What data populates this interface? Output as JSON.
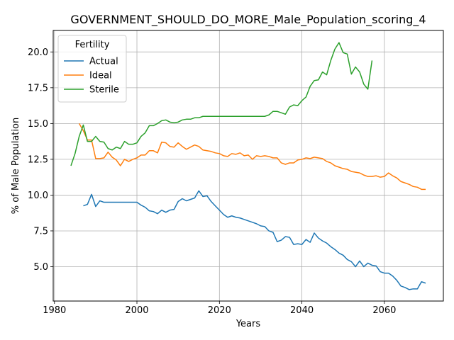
{
  "chart_data": {
    "type": "line",
    "title": "GOVERNMENT_SHOULD_DO_MORE_Male_Population_scoring_4",
    "xlabel": "Years",
    "ylabel": "% of Male Population",
    "xlim": [
      1979.7,
      2074.3
    ],
    "ylim": [
      2.6,
      21.5
    ],
    "xticks": [
      1980,
      2000,
      2020,
      2040,
      2060
    ],
    "yticks": [
      5.0,
      7.5,
      10.0,
      12.5,
      15.0,
      17.5,
      20.0
    ],
    "xtick_labels": [
      "1980",
      "2000",
      "2020",
      "2040",
      "2060"
    ],
    "ytick_labels": [
      "5.0",
      "7.5",
      "10.0",
      "12.5",
      "15.0",
      "17.5",
      "20.0"
    ],
    "grid": true,
    "legend": {
      "title": "Fertility",
      "position": "top-left"
    },
    "series": [
      {
        "name": "Actual",
        "color": "#1f77b4",
        "x": [
          1987,
          1988,
          1989,
          1990,
          1991,
          1992,
          1993,
          1994,
          1995,
          1996,
          1997,
          1998,
          1999,
          2000,
          2001,
          2002,
          2003,
          2004,
          2005,
          2006,
          2007,
          2008,
          2009,
          2010,
          2011,
          2012,
          2013,
          2014,
          2015,
          2016,
          2017,
          2018,
          2019,
          2020,
          2021,
          2022,
          2023,
          2024,
          2025,
          2026,
          2027,
          2028,
          2029,
          2030,
          2031,
          2032,
          2033,
          2034,
          2035,
          2036,
          2037,
          2038,
          2039,
          2040,
          2041,
          2042,
          2043,
          2044,
          2045,
          2046,
          2047,
          2048,
          2049,
          2050,
          2051,
          2052,
          2053,
          2054,
          2055,
          2056,
          2057,
          2058,
          2059,
          2060,
          2061,
          2062,
          2063,
          2064,
          2065,
          2066,
          2067,
          2068,
          2069,
          2070
        ],
        "y": [
          9.25,
          9.35,
          10.05,
          9.2,
          9.6,
          9.5,
          9.5,
          9.5,
          9.5,
          9.5,
          9.5,
          9.5,
          9.5,
          9.5,
          9.3,
          9.15,
          8.9,
          8.85,
          8.7,
          8.95,
          8.8,
          8.95,
          9.0,
          9.55,
          9.75,
          9.6,
          9.7,
          9.8,
          10.3,
          9.9,
          9.95,
          9.55,
          9.25,
          8.95,
          8.65,
          8.45,
          8.55,
          8.45,
          8.4,
          8.3,
          8.2,
          8.1,
          8.0,
          7.85,
          7.8,
          7.5,
          7.4,
          6.75,
          6.85,
          7.1,
          7.05,
          6.55,
          6.6,
          6.55,
          6.9,
          6.7,
          7.35,
          7.0,
          6.8,
          6.65,
          6.4,
          6.2,
          5.95,
          5.8,
          5.5,
          5.35,
          5.0,
          5.4,
          5.0,
          5.25,
          5.1,
          5.05,
          4.65,
          4.55,
          4.55,
          4.35,
          4.05,
          3.65,
          3.55,
          3.4,
          3.45,
          3.45,
          3.95,
          3.85
        ]
      },
      {
        "name": "Ideal",
        "color": "#ff7f0e",
        "x": [
          1986,
          1987,
          1988,
          1989,
          1990,
          1991,
          1992,
          1993,
          1994,
          1995,
          1996,
          1997,
          1998,
          1999,
          2000,
          2001,
          2002,
          2003,
          2004,
          2005,
          2006,
          2007,
          2008,
          2009,
          2010,
          2011,
          2012,
          2013,
          2014,
          2015,
          2016,
          2017,
          2018,
          2019,
          2020,
          2021,
          2022,
          2023,
          2024,
          2025,
          2026,
          2027,
          2028,
          2029,
          2030,
          2031,
          2032,
          2033,
          2034,
          2035,
          2036,
          2037,
          2038,
          2039,
          2040,
          2041,
          2042,
          2043,
          2044,
          2045,
          2046,
          2047,
          2048,
          2049,
          2050,
          2051,
          2052,
          2053,
          2054,
          2055,
          2056,
          2057,
          2058,
          2059,
          2060,
          2061,
          2062,
          2063,
          2064,
          2065,
          2066,
          2067,
          2068,
          2069,
          2070
        ],
        "y": [
          15.0,
          14.5,
          13.85,
          13.85,
          12.55,
          12.55,
          12.6,
          13.0,
          12.65,
          12.45,
          12.05,
          12.5,
          12.35,
          12.5,
          12.6,
          12.8,
          12.8,
          13.1,
          13.1,
          12.95,
          13.7,
          13.65,
          13.4,
          13.35,
          13.65,
          13.4,
          13.2,
          13.35,
          13.5,
          13.4,
          13.15,
          13.1,
          13.05,
          12.95,
          12.9,
          12.75,
          12.7,
          12.9,
          12.85,
          12.95,
          12.75,
          12.8,
          12.5,
          12.75,
          12.7,
          12.75,
          12.7,
          12.6,
          12.6,
          12.25,
          12.15,
          12.25,
          12.25,
          12.45,
          12.5,
          12.6,
          12.55,
          12.65,
          12.6,
          12.55,
          12.35,
          12.25,
          12.05,
          11.95,
          11.85,
          11.8,
          11.65,
          11.6,
          11.55,
          11.4,
          11.3,
          11.3,
          11.35,
          11.25,
          11.3,
          11.55,
          11.35,
          11.2,
          10.95,
          10.85,
          10.75,
          10.6,
          10.55,
          10.4,
          10.4
        ]
      },
      {
        "name": "Sterile",
        "color": "#2ca02c",
        "x": [
          1984,
          1985,
          1986,
          1987,
          1988,
          1989,
          1990,
          1991,
          1992,
          1993,
          1994,
          1995,
          1996,
          1997,
          1998,
          1999,
          2000,
          2001,
          2002,
          2003,
          2004,
          2005,
          2006,
          2007,
          2008,
          2009,
          2010,
          2011,
          2012,
          2013,
          2014,
          2015,
          2016,
          2017,
          2018,
          2019,
          2020,
          2021,
          2022,
          2023,
          2024,
          2025,
          2026,
          2027,
          2028,
          2029,
          2030,
          2031,
          2032,
          2033,
          2034,
          2035,
          2036,
          2037,
          2038,
          2039,
          2040,
          2041,
          2042,
          2043,
          2044,
          2045,
          2046,
          2047,
          2048,
          2049,
          2050,
          2051,
          2052,
          2053,
          2054,
          2055,
          2056,
          2057
        ],
        "y": [
          12.05,
          12.9,
          14.1,
          14.9,
          13.75,
          13.75,
          14.1,
          13.75,
          13.7,
          13.25,
          13.15,
          13.35,
          13.25,
          13.75,
          13.55,
          13.55,
          13.65,
          14.1,
          14.35,
          14.85,
          14.85,
          15.0,
          15.2,
          15.25,
          15.1,
          15.05,
          15.1,
          15.25,
          15.3,
          15.3,
          15.4,
          15.4,
          15.5,
          15.5,
          15.5,
          15.5,
          15.5,
          15.5,
          15.5,
          15.5,
          15.5,
          15.5,
          15.5,
          15.5,
          15.5,
          15.5,
          15.5,
          15.5,
          15.6,
          15.85,
          15.85,
          15.75,
          15.65,
          16.15,
          16.3,
          16.25,
          16.6,
          16.85,
          17.6,
          18.0,
          18.05,
          18.6,
          18.4,
          19.4,
          20.2,
          20.65,
          19.95,
          19.85,
          18.45,
          18.95,
          18.6,
          17.75,
          17.4,
          19.4
        ]
      }
    ]
  }
}
